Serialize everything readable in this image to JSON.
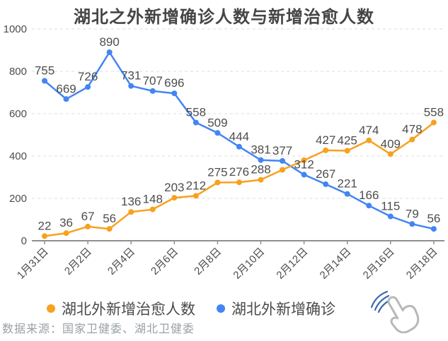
{
  "title": "湖北之外新增确诊人数与新增治愈人数",
  "source_note": "数据来源：国家卫健委、湖北卫健委",
  "legend": {
    "items": [
      {
        "label": "湖北外新增治愈人数",
        "color": "#f7a11f"
      },
      {
        "label": "湖北外新增确诊",
        "color": "#4285f4"
      }
    ]
  },
  "icons": {
    "gesture": "hand-click-cursor-icon"
  },
  "colors": {
    "cured": "#f7a11f",
    "confirmed": "#4285f4",
    "grid": "#dcdcdc",
    "axis": "#8f8f8f",
    "value_labels": "#4d4d4d",
    "source_note": "#9aa0a6"
  },
  "chart_data": {
    "type": "line",
    "x": [
      "1月31日",
      "2月1日",
      "2月2日",
      "2月3日",
      "2月4日",
      "2月5日",
      "2月6日",
      "2月7日",
      "2月8日",
      "2月9日",
      "2月10日",
      "2月11日",
      "2月12日",
      "2月13日",
      "2月14日",
      "2月15日",
      "2月16日",
      "2月17日",
      "2月18日"
    ],
    "x_tick_labels": [
      "1月31日",
      "2月2日",
      "2月4日",
      "2月6日",
      "2月8日",
      "2月10日",
      "2月12日",
      "2月14日",
      "2月16日",
      "2月18日"
    ],
    "x_tick_step": 2,
    "ylim": [
      0,
      1000
    ],
    "yticks": [
      0,
      200,
      400,
      600,
      800,
      1000
    ],
    "grid": "horizontal-dashed",
    "legend_position": "bottom",
    "series": [
      {
        "name": "湖北外新增治愈人数",
        "color": "#f7a11f",
        "values": [
          22,
          36,
          67,
          56,
          136,
          148,
          203,
          212,
          275,
          276,
          288,
          335,
          380,
          427,
          425,
          474,
          409,
          478,
          558
        ],
        "unlabeled_indices": [
          11,
          12
        ],
        "estimated_indices": [
          11,
          12
        ]
      },
      {
        "name": "湖北外新增确诊",
        "color": "#4285f4",
        "values": [
          755,
          669,
          726,
          890,
          731,
          707,
          696,
          558,
          509,
          444,
          381,
          377,
          312,
          267,
          221,
          166,
          115,
          79,
          56
        ],
        "unlabeled_indices": [],
        "estimated_indices": []
      }
    ]
  }
}
